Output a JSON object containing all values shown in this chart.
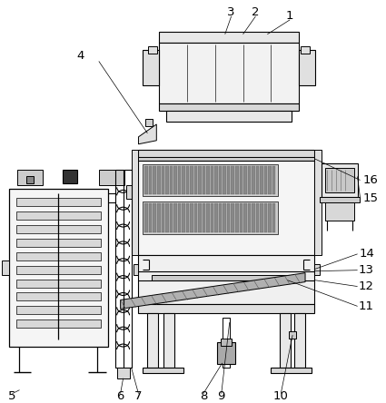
{
  "bg_color": "#ffffff",
  "lc": "#000000",
  "fc_light": "#f0f0f0",
  "fc_mid": "#d8d8d8",
  "fc_dark": "#aaaaaa",
  "fc_very_light": "#f8f8f8",
  "fc_gray": "#888888",
  "fc_hatch": "#999999"
}
